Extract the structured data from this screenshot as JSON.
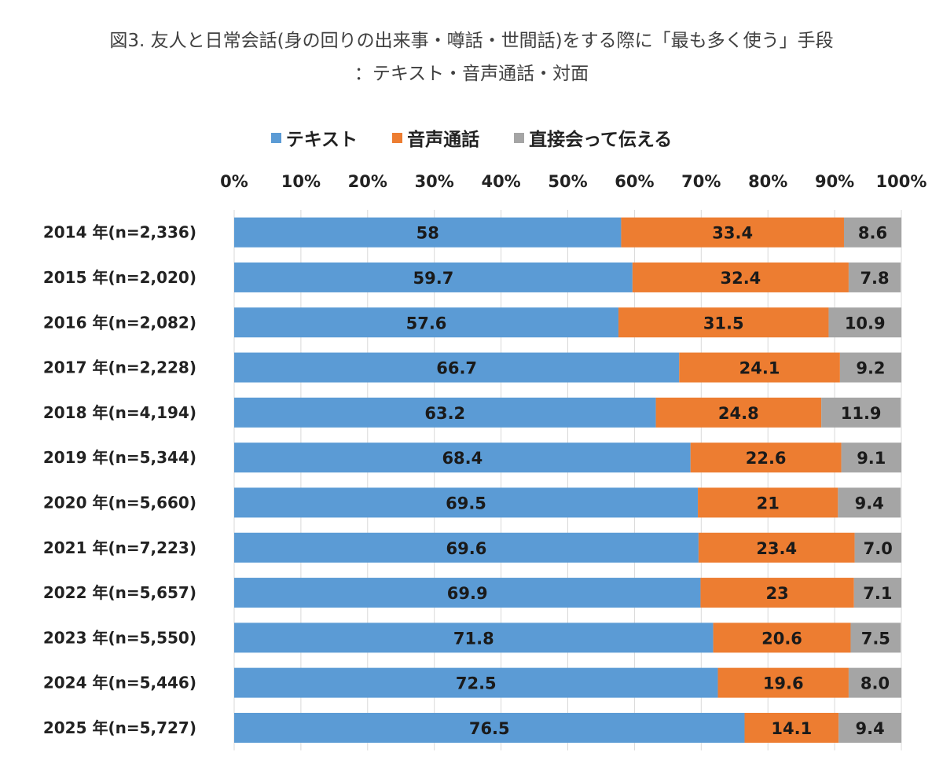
{
  "chart_data": {
    "type": "bar",
    "orientation": "horizontal",
    "stacked": true,
    "title": "図3. 友人と日常会話(身の回りの出来事・噂話・世間話)をする際に「最も多く使う」手段",
    "subtitle": "：テキスト・音声通話・対面",
    "categories": [
      "2014 年(n=2,336)",
      "2015 年(n=2,020)",
      "2016 年(n=2,082)",
      "2017 年(n=2,228)",
      "2018 年(n=4,194)",
      "2019 年(n=5,344)",
      "2020 年(n=5,660)",
      "2021 年(n=7,223)",
      "2022 年(n=5,657)",
      "2023 年(n=5,550)",
      "2024 年(n=5,446)",
      "2025 年(n=5,727)"
    ],
    "series": [
      {
        "name": "テキスト",
        "color": "#5b9bd5",
        "values": [
          58,
          59.7,
          57.6,
          66.7,
          63.2,
          68.4,
          69.5,
          69.6,
          69.9,
          71.8,
          72.5,
          76.5
        ],
        "labels": [
          "58",
          "59.7",
          "57.6",
          "66.7",
          "63.2",
          "68.4",
          "69.5",
          "69.6",
          "69.9",
          "71.8",
          "72.5",
          "76.5"
        ]
      },
      {
        "name": "音声通話",
        "color": "#ed7d31",
        "values": [
          33.4,
          32.4,
          31.5,
          24.1,
          24.8,
          22.6,
          21,
          23.4,
          23,
          20.6,
          19.6,
          14.1
        ],
        "labels": [
          "33.4",
          "32.4",
          "31.5",
          "24.1",
          "24.8",
          "22.6",
          "21",
          "23.4",
          "23",
          "20.6",
          "19.6",
          "14.1"
        ]
      },
      {
        "name": "直接会って伝える",
        "color": "#a5a5a5",
        "values": [
          8.6,
          7.8,
          10.9,
          9.2,
          11.9,
          9.1,
          9.4,
          7.0,
          7.1,
          7.5,
          8.0,
          9.4
        ],
        "labels": [
          "8.6",
          "7.8",
          "10.9",
          "9.2",
          "11.9",
          "9.1",
          "9.4",
          "7.0",
          "7.1",
          "7.5",
          "8.0",
          "9.4"
        ]
      }
    ],
    "xlim": [
      0,
      100
    ],
    "xticks": [
      "0%",
      "10%",
      "20%",
      "30%",
      "40%",
      "50%",
      "60%",
      "70%",
      "80%",
      "90%",
      "100%"
    ],
    "legend_position": "top",
    "axis_position": "top",
    "grid": true
  }
}
